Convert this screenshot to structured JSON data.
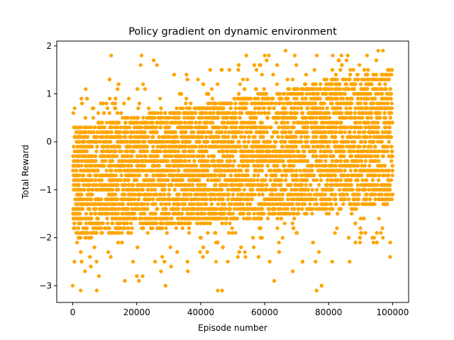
{
  "chart_data": {
    "type": "scatter",
    "title": "Policy gradient on dynamic environment",
    "xlabel": "Episode number",
    "ylabel": "Total Reward",
    "xlim": [
      -5000,
      105000
    ],
    "ylim": [
      -3.35,
      2.1
    ],
    "xticks": [
      0,
      20000,
      40000,
      60000,
      80000,
      100000
    ],
    "xtick_labels": [
      "0",
      "20000",
      "40000",
      "60000",
      "80000",
      "100000"
    ],
    "yticks": [
      -3,
      -2,
      -1,
      0,
      1,
      2
    ],
    "ytick_labels": [
      "−3",
      "−2",
      "−1",
      "0",
      "1",
      "2"
    ],
    "grid": false,
    "marker_color": "#FFA500",
    "series": [
      {
        "x_start": 0,
        "x_end": 100000,
        "num_episodes": 100000,
        "y_step": 0.1,
        "mean_start": -0.9,
        "mean_end": 0.1,
        "dense_band_start": [
          -2.0,
          0.3
        ],
        "dense_band_end": [
          -1.3,
          1.5
        ],
        "y_min_observed": -3.1,
        "y_max_observed": 1.9
      }
    ],
    "notable_points": [
      {
        "x": 0,
        "y": -3.0
      },
      {
        "x": 2500,
        "y": -3.1
      },
      {
        "x": 7500,
        "y": -3.1
      },
      {
        "x": 12000,
        "y": 1.8
      },
      {
        "x": 21500,
        "y": 1.8
      },
      {
        "x": 60000,
        "y": 1.8
      },
      {
        "x": 66500,
        "y": 1.9
      },
      {
        "x": 84000,
        "y": 1.8
      },
      {
        "x": 86000,
        "y": 1.8
      },
      {
        "x": 92000,
        "y": 1.8
      },
      {
        "x": 95500,
        "y": 1.9
      },
      {
        "x": 97000,
        "y": 1.9
      },
      {
        "x": 54000,
        "y": -2.4
      },
      {
        "x": 77000,
        "y": -2.3
      },
      {
        "x": 94000,
        "y": -2.1
      }
    ]
  }
}
